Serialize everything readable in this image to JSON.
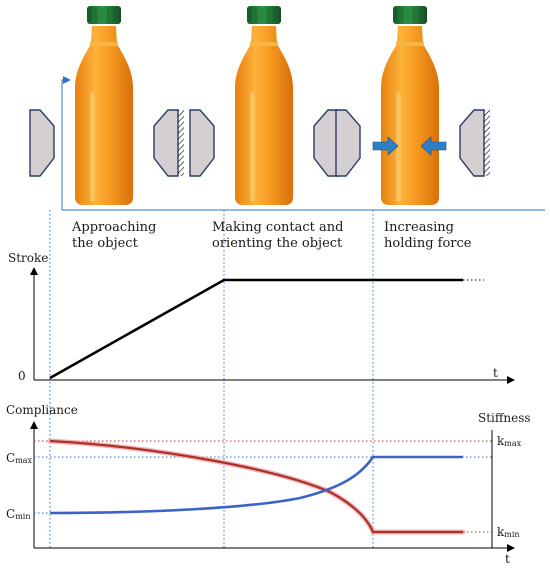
{
  "stages": [
    {
      "line1": "Approaching",
      "line2": "the object"
    },
    {
      "line1": "Making contact and",
      "line2": "orienting the object"
    },
    {
      "line1": "Increasing",
      "line2": "holding force"
    }
  ],
  "stroke_plot": {
    "ylabel": "Stroke",
    "origin": "0",
    "xlabel": "t"
  },
  "compliance_plot": {
    "ylabel_left": "Compliance",
    "ylabel_right": "Stiffness",
    "c_max": {
      "main": "C",
      "sub": "max"
    },
    "c_min": {
      "main": "C",
      "sub": "min"
    },
    "k_max": {
      "main": "k",
      "sub": "max"
    },
    "k_min": {
      "main": "k",
      "sub": "min"
    },
    "xlabel": "t"
  },
  "colors": {
    "bottle_juice": "#f39a1c",
    "bottle_cap": "#1f7a35",
    "gripper": "#d4d0d2",
    "gripper_edge": "#2b3b66",
    "force_arrow": "#2e7fc4",
    "guide_line": "#2e75c9",
    "compliance_curve": "#3a62c8",
    "stiffness_curve": "#a83226",
    "stiffness_highlight": "#f2a0a8",
    "stroke_line": "#000000"
  },
  "icons": [
    "bottle",
    "gripper-jaw",
    "force-arrow"
  ]
}
